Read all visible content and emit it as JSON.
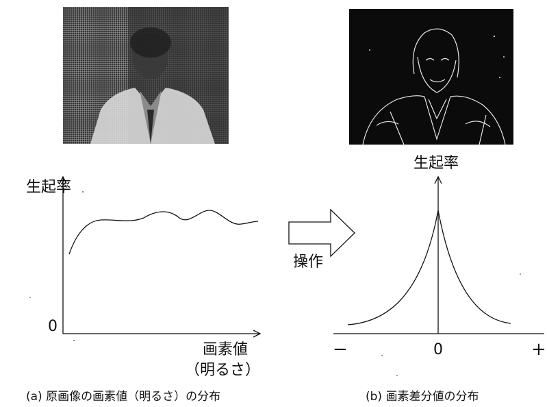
{
  "graph_a": {
    "y_label": "生起率",
    "origin_label": "0",
    "x_label_line1": "画素値",
    "x_label_line2": "（明るさ）",
    "caption": "(a) 原画像の画素値（明るさ）の分布"
  },
  "arrow": {
    "label": "操作"
  },
  "graph_b": {
    "y_label": "生起率",
    "tick_minus": "−",
    "tick_zero": "0",
    "tick_plus": "+",
    "caption": "(b) 画素差分値の分布"
  }
}
